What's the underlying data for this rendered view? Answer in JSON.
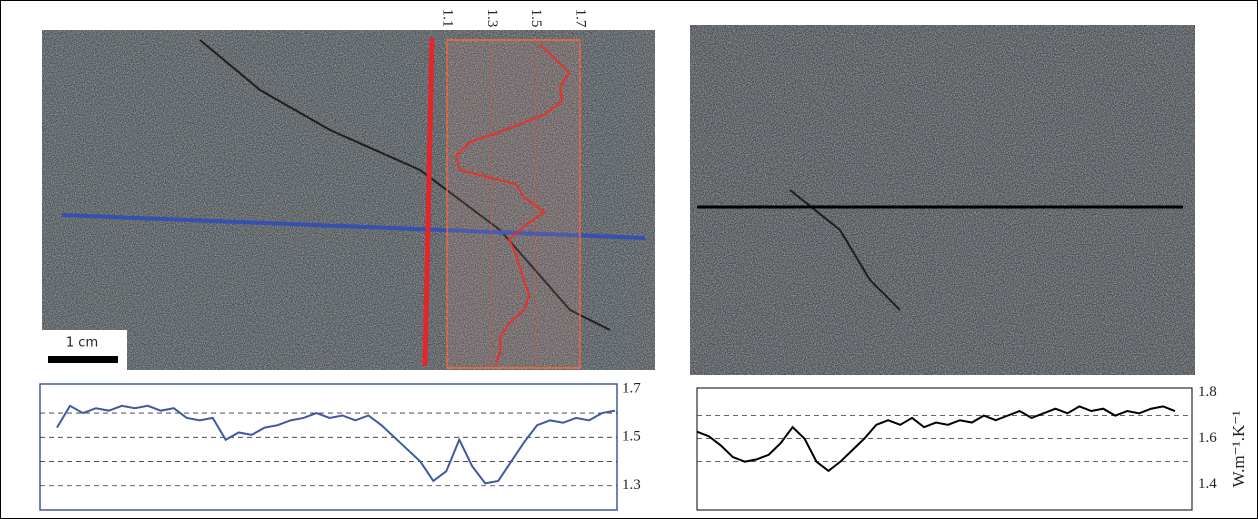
{
  "scale_bar": "1 cm",
  "chart_data": [
    {
      "type": "line",
      "orientation": "vertical",
      "color": "#e8312a",
      "values": [
        1.52,
        1.59,
        1.65,
        1.61,
        1.62,
        1.54,
        1.38,
        1.2,
        1.14,
        1.16,
        1.41,
        1.45,
        1.54,
        1.45,
        1.38,
        1.41,
        1.43,
        1.45,
        1.47,
        1.45,
        1.38,
        1.34,
        1.34,
        1.32
      ],
      "xlim": [
        1.1,
        1.7
      ],
      "xticks": [
        1.1,
        1.3,
        1.5,
        1.7
      ],
      "grid": true
    },
    {
      "type": "line",
      "orientation": "horizontal",
      "color": "#3f5a9e",
      "values": [
        1.54,
        1.63,
        1.6,
        1.62,
        1.61,
        1.63,
        1.62,
        1.63,
        1.61,
        1.62,
        1.58,
        1.57,
        1.58,
        1.49,
        1.52,
        1.51,
        1.54,
        1.55,
        1.57,
        1.58,
        1.6,
        1.58,
        1.59,
        1.57,
        1.59,
        1.55,
        1.5,
        1.45,
        1.4,
        1.32,
        1.36,
        1.49,
        1.38,
        1.31,
        1.32,
        1.4,
        1.48,
        1.55,
        1.57,
        1.56,
        1.58,
        1.57,
        1.6,
        1.61
      ],
      "ylim": [
        1.2,
        1.72
      ],
      "yticks": [
        1.3,
        1.5,
        1.7
      ],
      "gridlines": [
        1.3,
        1.4,
        1.5,
        1.6
      ],
      "grid": true
    },
    {
      "type": "line",
      "orientation": "horizontal",
      "color": "#000000",
      "values": [
        1.63,
        1.61,
        1.57,
        1.52,
        1.5,
        1.51,
        1.53,
        1.58,
        1.65,
        1.6,
        1.5,
        1.46,
        1.5,
        1.55,
        1.6,
        1.66,
        1.68,
        1.66,
        1.69,
        1.65,
        1.67,
        1.66,
        1.68,
        1.67,
        1.7,
        1.68,
        1.7,
        1.72,
        1.69,
        1.71,
        1.73,
        1.71,
        1.74,
        1.72,
        1.73,
        1.7,
        1.72,
        1.71,
        1.73,
        1.74,
        1.72
      ],
      "ylim": [
        1.29,
        1.82
      ],
      "yticks": [
        1.4,
        1.6,
        1.8
      ],
      "gridlines": [
        1.5,
        1.6,
        1.7
      ],
      "grid": true,
      "y_label": "W.m⁻¹.K⁻¹"
    }
  ]
}
